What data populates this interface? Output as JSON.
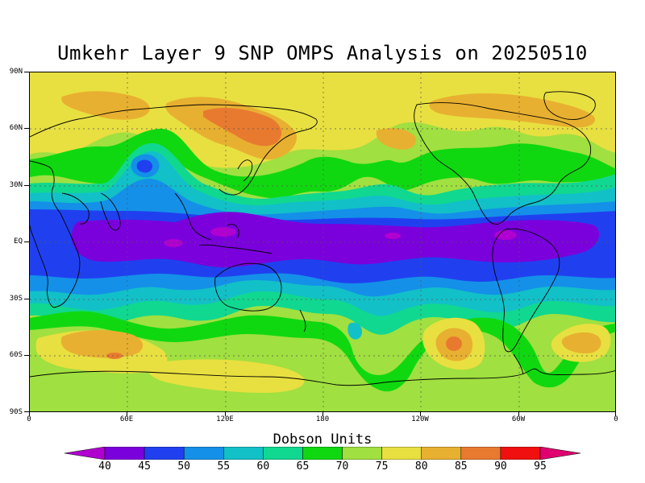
{
  "title": "Umkehr Layer 9 SNP OMPS Analysis on 20250510",
  "units_label": "Dobson Units",
  "lat_axis": [
    "90N",
    "60N",
    "30N",
    "EQ",
    "30S",
    "60S",
    "90S"
  ],
  "lon_axis": [
    "0",
    "60E",
    "120E",
    "180",
    "120W",
    "60W",
    "0"
  ],
  "colorbar": {
    "levels": [
      "40",
      "45",
      "50",
      "55",
      "60",
      "65",
      "70",
      "75",
      "80",
      "85",
      "90",
      "95"
    ],
    "colors": [
      "#b000d0",
      "#7a00dc",
      "#2040f0",
      "#1490e8",
      "#12c0c8",
      "#10d890",
      "#10d810",
      "#a0e040",
      "#e8e040",
      "#e8b030",
      "#e87a30",
      "#f01010",
      "#e00070"
    ]
  }
}
